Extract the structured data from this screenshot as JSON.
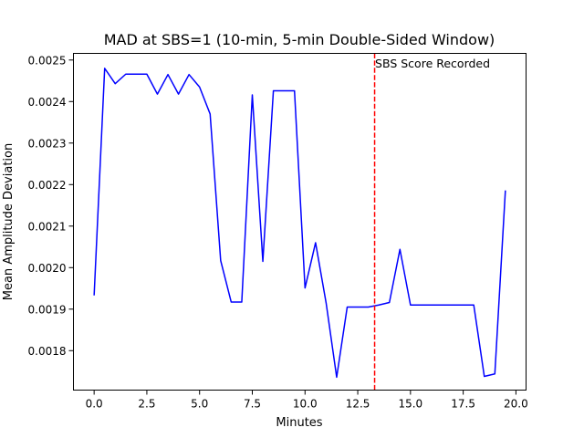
{
  "chart_data": {
    "type": "line",
    "title": "MAD at SBS=1 (10-min, 5-min Double-Sided Window)",
    "xlabel": "Minutes",
    "ylabel": "Mean Amplitude Deviation",
    "xlim": [
      -0.98,
      20.48
    ],
    "ylim": [
      0.001705,
      0.002516
    ],
    "x_ticks": [
      0.0,
      2.5,
      5.0,
      7.5,
      10.0,
      12.5,
      15.0,
      17.5,
      20.0
    ],
    "x_tick_labels": [
      "0.0",
      "2.5",
      "5.0",
      "7.5",
      "10.0",
      "12.5",
      "15.0",
      "17.5",
      "20.0"
    ],
    "y_ticks": [
      0.0018,
      0.0019,
      0.002,
      0.0021,
      0.0022,
      0.0023,
      0.0024,
      0.0025
    ],
    "y_tick_labels": [
      "0.0018",
      "0.0019",
      "0.0020",
      "0.0021",
      "0.0022",
      "0.0023",
      "0.0024",
      "0.0025"
    ],
    "grid": false,
    "series": [
      {
        "color": "#0000ff",
        "x": [
          0.0,
          0.5,
          1.0,
          1.5,
          2.0,
          2.5,
          3.0,
          3.5,
          4.0,
          4.5,
          5.0,
          5.5,
          6.0,
          6.5,
          7.0,
          7.5,
          8.0,
          8.5,
          9.0,
          9.5,
          10.0,
          10.5,
          11.0,
          11.5,
          12.0,
          12.5,
          13.0,
          13.5,
          14.0,
          14.5,
          15.0,
          15.5,
          16.0,
          16.5,
          17.0,
          17.5,
          18.0,
          18.5,
          19.0,
          19.5
        ],
        "y": [
          0.001933,
          0.00248,
          0.002443,
          0.002466,
          0.002466,
          0.002466,
          0.002418,
          0.002465,
          0.002418,
          0.002465,
          0.002435,
          0.00237,
          0.002017,
          0.001917,
          0.001917,
          0.002416,
          0.002015,
          0.002426,
          0.002426,
          0.002426,
          0.001951,
          0.00206,
          0.001915,
          0.001736,
          0.001905,
          0.001905,
          0.001905,
          0.00191,
          0.001916,
          0.002044,
          0.00191,
          0.00191,
          0.00191,
          0.00191,
          0.00191,
          0.00191,
          0.00191,
          0.001738,
          0.001744,
          0.002186
        ]
      }
    ],
    "vline": {
      "x": 13.3,
      "color": "#ff0000",
      "style": "dashed"
    },
    "annotation": {
      "text": "SBS Score Recorded",
      "x": 13.3
    }
  }
}
